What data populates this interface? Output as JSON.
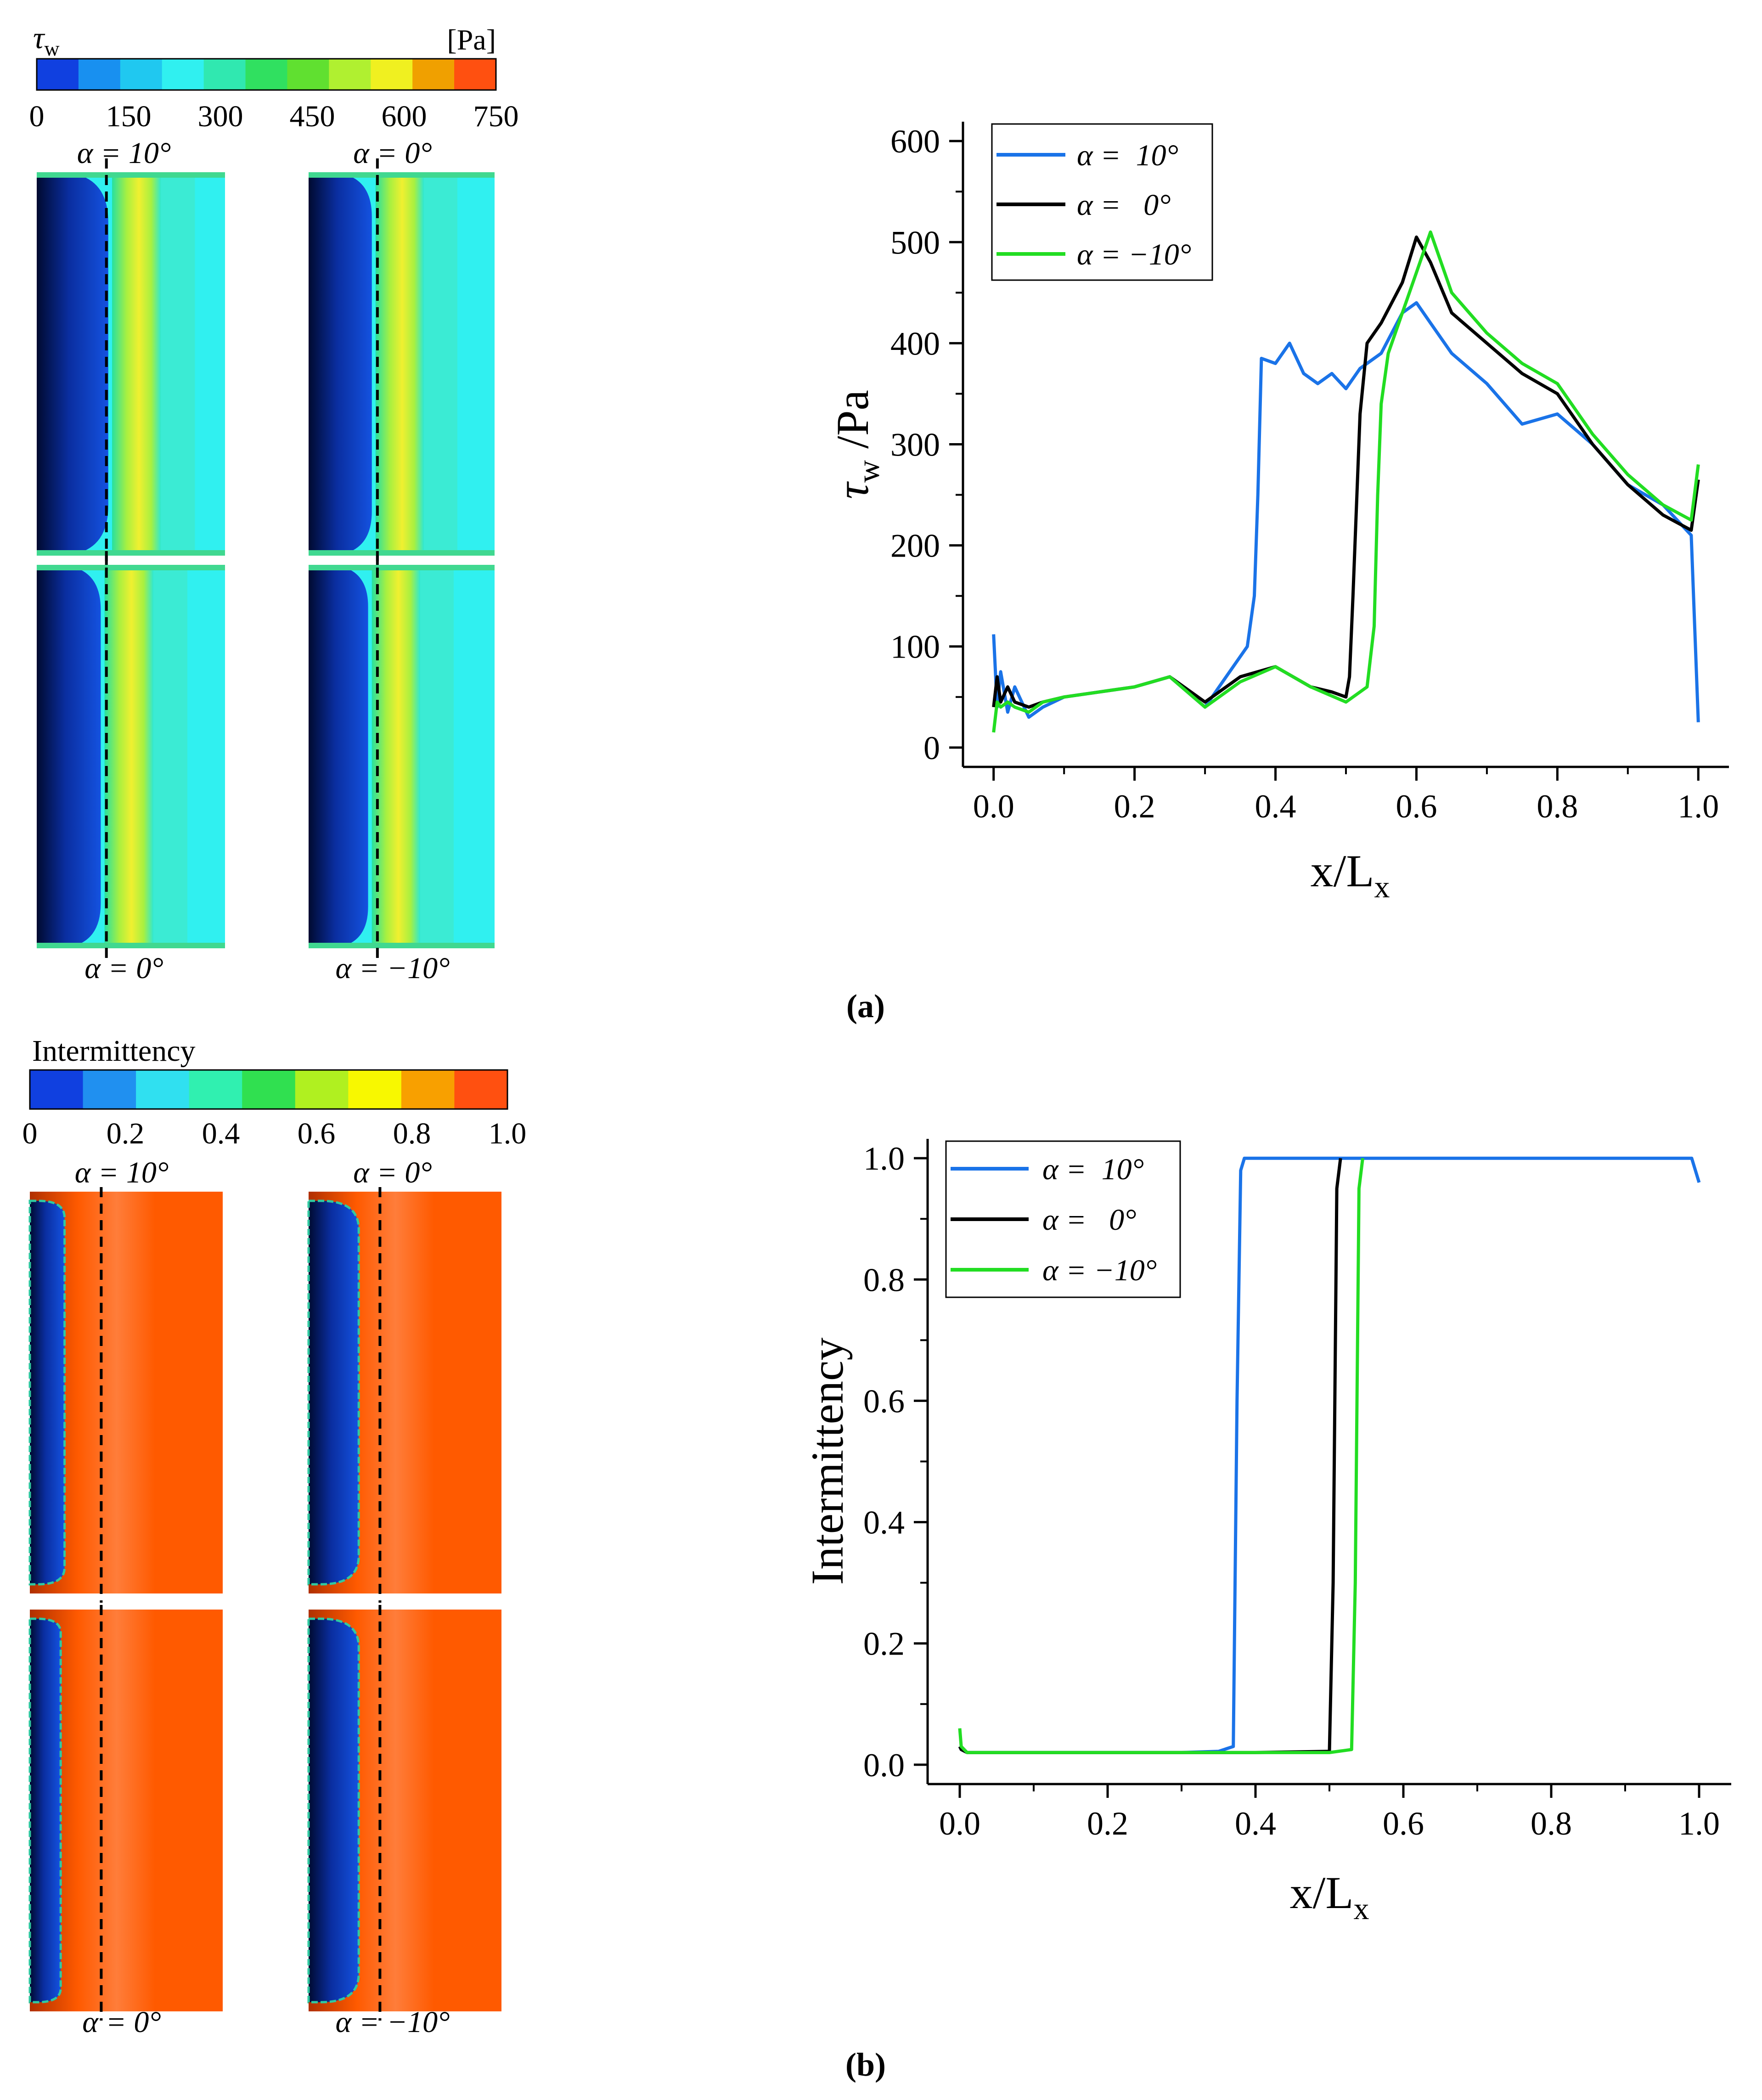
{
  "colors": {
    "blue_series": "#1a73e8",
    "black_series": "#000000",
    "green_series": "#22dd22",
    "laminar_dark": "#001f6b",
    "laminar_blue": "#1450d8",
    "turbulent_orange": "#ff5a00",
    "cyan_field": "#30f0f0"
  },
  "panel_a": {
    "legend_title": "τ",
    "legend_title_sub": "w",
    "legend_unit": "[Pa]",
    "legend_ticks": [
      "0",
      "150",
      "300",
      "450",
      "600",
      "750"
    ],
    "legend_colors": [
      "#1040e0",
      "#1890f0",
      "#20c8f0",
      "#30f0f0",
      "#30e8b0",
      "#30e060",
      "#60e030",
      "#b0f030",
      "#f0f020",
      "#f0a000",
      "#ff5010"
    ],
    "contour_labels_top": [
      "α = 10°",
      "α = 0°"
    ],
    "contour_labels_bottom": [
      "α = 0°",
      "α = −10°"
    ],
    "caption": "(a)"
  },
  "panel_b": {
    "legend_title": "Intermittency",
    "legend_ticks": [
      "0",
      "0.2",
      "0.4",
      "0.6",
      "0.8",
      "1.0"
    ],
    "legend_colors": [
      "#1040e0",
      "#2090f0",
      "#30e0f0",
      "#30f0b0",
      "#30e050",
      "#b0f020",
      "#f8f800",
      "#f8a000",
      "#ff5010"
    ],
    "contour_labels_top": [
      "α = 10°",
      "α = 0°"
    ],
    "contour_labels_bottom": [
      "α = 0°",
      "α = −10°"
    ],
    "caption": "(b)"
  },
  "chart_data": [
    {
      "type": "line",
      "xlabel": "x/L",
      "xlabel_sub": "x",
      "ylabel": "τ",
      "ylabel_sub": "w",
      "ylabel_suffix": " /Pa",
      "xlim": [
        0.0,
        1.0
      ],
      "ylim": [
        0,
        600
      ],
      "xticks": [
        "0.0",
        "0.2",
        "0.4",
        "0.6",
        "0.8",
        "1.0"
      ],
      "yticks": [
        "0",
        "100",
        "200",
        "300",
        "400",
        "500",
        "600"
      ],
      "legend": "top-left",
      "series": [
        {
          "name": "α =  10°",
          "color": "#1a73e8",
          "x": [
            0.0,
            0.005,
            0.01,
            0.02,
            0.03,
            0.05,
            0.07,
            0.1,
            0.15,
            0.2,
            0.25,
            0.3,
            0.33,
            0.36,
            0.37,
            0.375,
            0.38,
            0.4,
            0.42,
            0.44,
            0.46,
            0.48,
            0.5,
            0.52,
            0.55,
            0.58,
            0.6,
            0.62,
            0.65,
            0.7,
            0.75,
            0.8,
            0.85,
            0.9,
            0.95,
            0.99,
            1.0
          ],
          "y": [
            112,
            40,
            75,
            35,
            60,
            30,
            40,
            50,
            55,
            60,
            70,
            40,
            70,
            100,
            150,
            250,
            385,
            380,
            400,
            370,
            360,
            370,
            355,
            375,
            390,
            430,
            440,
            420,
            390,
            360,
            320,
            330,
            300,
            260,
            240,
            210,
            25
          ]
        },
        {
          "name": "α =   0°",
          "color": "#000000",
          "x": [
            0.0,
            0.005,
            0.01,
            0.02,
            0.03,
            0.05,
            0.07,
            0.1,
            0.15,
            0.2,
            0.25,
            0.3,
            0.35,
            0.4,
            0.45,
            0.48,
            0.5,
            0.505,
            0.51,
            0.52,
            0.53,
            0.55,
            0.58,
            0.6,
            0.62,
            0.65,
            0.7,
            0.75,
            0.8,
            0.85,
            0.9,
            0.95,
            0.99,
            1.0
          ],
          "y": [
            40,
            70,
            45,
            60,
            45,
            40,
            45,
            50,
            55,
            60,
            70,
            45,
            70,
            80,
            60,
            55,
            50,
            70,
            150,
            330,
            400,
            420,
            460,
            505,
            480,
            430,
            400,
            370,
            350,
            300,
            260,
            230,
            215,
            265
          ]
        },
        {
          "name": "α = −10°",
          "color": "#22dd22",
          "x": [
            0.0,
            0.005,
            0.01,
            0.02,
            0.03,
            0.05,
            0.07,
            0.1,
            0.15,
            0.2,
            0.25,
            0.3,
            0.35,
            0.4,
            0.45,
            0.5,
            0.53,
            0.54,
            0.545,
            0.55,
            0.56,
            0.58,
            0.6,
            0.62,
            0.65,
            0.7,
            0.75,
            0.8,
            0.85,
            0.9,
            0.95,
            0.99,
            1.0
          ],
          "y": [
            15,
            45,
            40,
            45,
            40,
            35,
            45,
            50,
            55,
            60,
            70,
            40,
            65,
            80,
            60,
            45,
            60,
            120,
            250,
            340,
            390,
            430,
            470,
            510,
            450,
            410,
            380,
            360,
            310,
            270,
            240,
            225,
            280
          ]
        }
      ],
      "caption": "(a)"
    },
    {
      "type": "line",
      "xlabel": "x/L",
      "xlabel_sub": "x",
      "ylabel": "Intermittency",
      "xlim": [
        0.0,
        1.0
      ],
      "ylim": [
        0.0,
        1.0
      ],
      "xticks": [
        "0.0",
        "0.2",
        "0.4",
        "0.6",
        "0.8",
        "1.0"
      ],
      "yticks": [
        "0.0",
        "0.2",
        "0.4",
        "0.6",
        "0.8",
        "1.0"
      ],
      "legend": "top-left",
      "series": [
        {
          "name": "α =  10°",
          "color": "#1a73e8",
          "x": [
            0.0,
            0.002,
            0.01,
            0.1,
            0.2,
            0.3,
            0.35,
            0.37,
            0.375,
            0.38,
            0.385,
            0.4,
            0.6,
            0.8,
            0.99,
            1.0
          ],
          "y": [
            0.03,
            0.025,
            0.02,
            0.02,
            0.02,
            0.02,
            0.022,
            0.03,
            0.6,
            0.98,
            1.0,
            1.0,
            1.0,
            1.0,
            1.0,
            0.96
          ]
        },
        {
          "name": "α =   0°",
          "color": "#000000",
          "x": [
            0.0,
            0.002,
            0.01,
            0.1,
            0.2,
            0.3,
            0.4,
            0.5,
            0.505,
            0.51,
            0.515
          ],
          "y": [
            0.03,
            0.025,
            0.02,
            0.02,
            0.02,
            0.02,
            0.02,
            0.022,
            0.3,
            0.95,
            1.0
          ]
        },
        {
          "name": "α = −10°",
          "color": "#22dd22",
          "x": [
            0.0,
            0.002,
            0.01,
            0.1,
            0.2,
            0.3,
            0.4,
            0.5,
            0.53,
            0.535,
            0.54,
            0.545
          ],
          "y": [
            0.06,
            0.03,
            0.02,
            0.02,
            0.02,
            0.02,
            0.02,
            0.02,
            0.025,
            0.3,
            0.95,
            1.0
          ]
        }
      ],
      "caption": "(b)"
    }
  ]
}
